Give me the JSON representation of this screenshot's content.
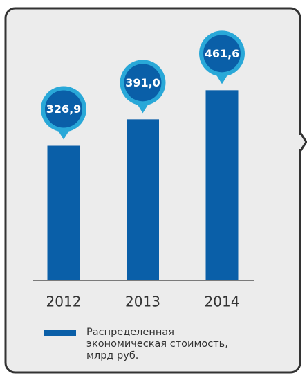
{
  "chart_data": {
    "type": "bar",
    "categories": [
      "2012",
      "2013",
      "2014"
    ],
    "series": [
      {
        "name": "Распределенная экономическая стоимость, млрд руб.",
        "color": "#0a5fa8",
        "values": [
          326.9,
          391.0,
          461.6
        ],
        "value_labels": [
          "326,9",
          "391,0",
          "461,6"
        ]
      }
    ],
    "ylim": [
      0,
      500
    ]
  }
}
